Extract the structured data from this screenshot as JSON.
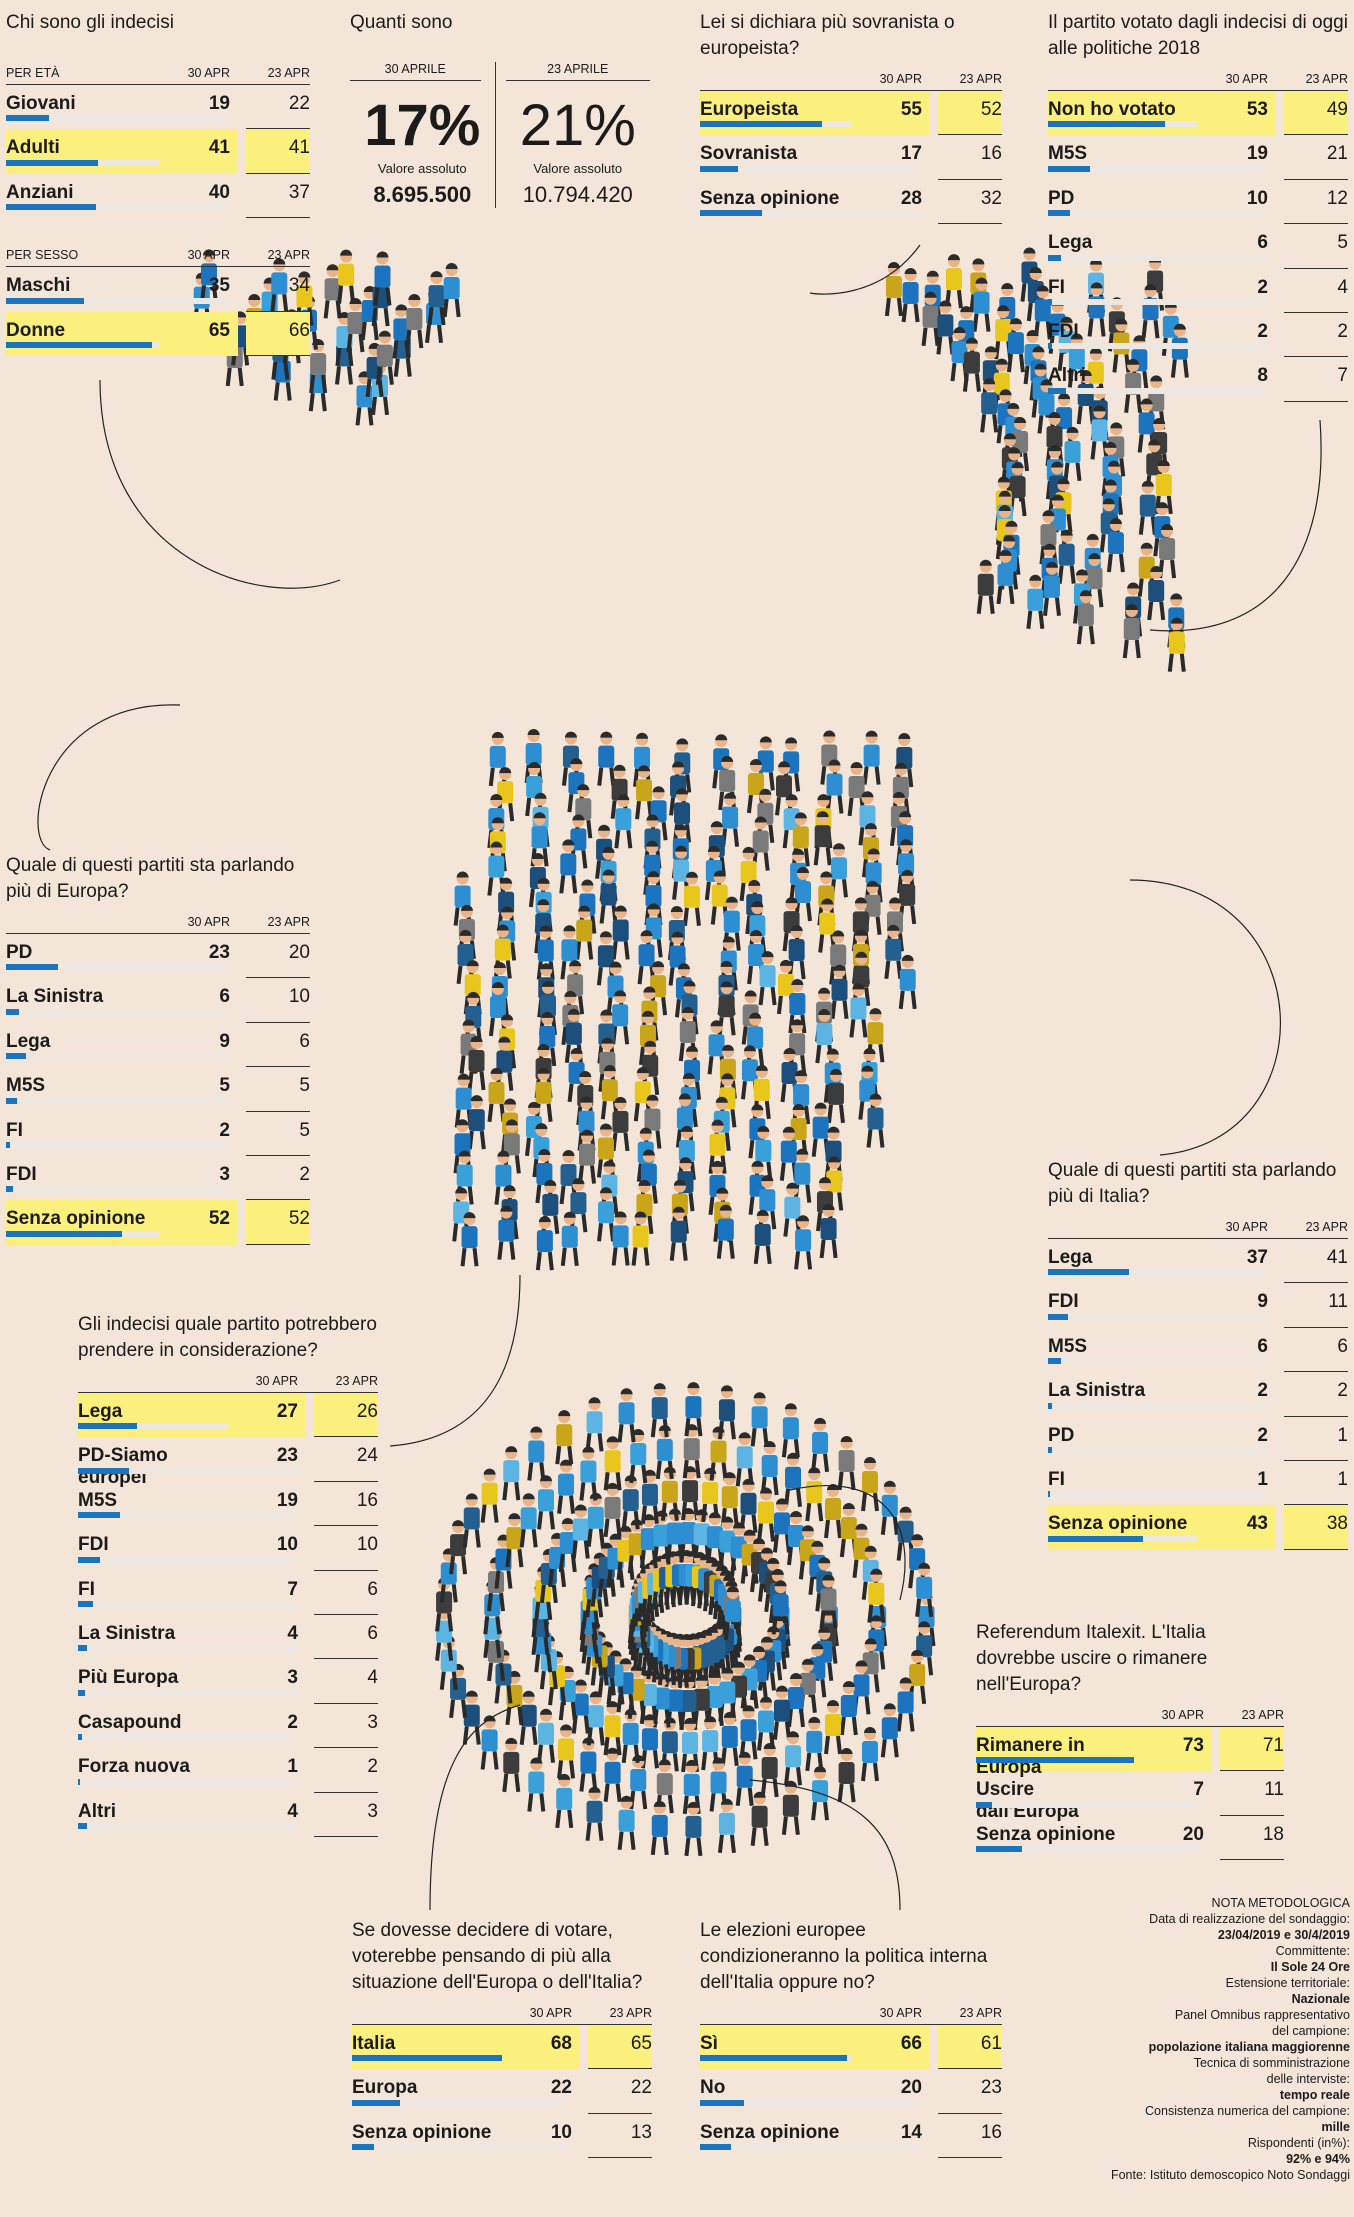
{
  "colors": {
    "background": "#f3e6d8",
    "highlight": "#fbef7e",
    "bar": "#1b74bd",
    "track": "#ede7e1"
  },
  "chart_data": [
    {
      "id": "chi_sono",
      "type": "table",
      "title": "Chi sono gli indecisi",
      "groups": [
        {
          "label": "PER ETÀ",
          "col_a": "30 APR",
          "col_b": "23 APR",
          "rows": [
            {
              "label": "Giovani",
              "a": 19,
              "b": 22,
              "hl": false
            },
            {
              "label": "Adulti",
              "a": 41,
              "b": 41,
              "hl": true
            },
            {
              "label": "Anziani",
              "a": 40,
              "b": 37,
              "hl": false
            }
          ]
        },
        {
          "label": "PER SESSO",
          "col_a": "30 APR",
          "col_b": "23 APR",
          "rows": [
            {
              "label": "Maschi",
              "a": 35,
              "b": 34,
              "hl": false
            },
            {
              "label": "Donne",
              "a": 65,
              "b": 66,
              "hl": true
            }
          ]
        }
      ]
    },
    {
      "id": "quanti_sono",
      "type": "table",
      "title": "Quanti sono",
      "columns": [
        {
          "date": "30 APRILE",
          "pct": "17%",
          "sub": "Valore assoluto",
          "abs": "8.695.500"
        },
        {
          "date": "23 APRILE",
          "pct": "21%",
          "sub": "Valore assoluto",
          "abs": "10.794.420"
        }
      ]
    },
    {
      "id": "sovranista",
      "type": "table",
      "title": "Lei si dichiara più sovranista o europeista?",
      "col_a": "30 APR",
      "col_b": "23 APR",
      "rows": [
        {
          "label": "Europeista",
          "a": 55,
          "b": 52,
          "hl": true
        },
        {
          "label": "Sovranista",
          "a": 17,
          "b": 16,
          "hl": false
        },
        {
          "label": "Senza opinione",
          "a": 28,
          "b": 32,
          "hl": false
        }
      ]
    },
    {
      "id": "partito_2018",
      "type": "table",
      "title": "Il partito votato dagli indecisi di oggi alle politiche 2018",
      "col_a": "30 APR",
      "col_b": "23 APR",
      "rows": [
        {
          "label": "Non ho votato",
          "a": 53,
          "b": 49,
          "hl": true
        },
        {
          "label": "M5S",
          "a": 19,
          "b": 21,
          "hl": false
        },
        {
          "label": "PD",
          "a": 10,
          "b": 12,
          "hl": false
        },
        {
          "label": "Lega",
          "a": 6,
          "b": 5,
          "hl": false
        },
        {
          "label": "FI",
          "a": 2,
          "b": 4,
          "hl": false
        },
        {
          "label": "FDI",
          "a": 2,
          "b": 2,
          "hl": false
        },
        {
          "label": "Altri",
          "a": 8,
          "b": 7,
          "hl": false
        }
      ]
    },
    {
      "id": "europa",
      "type": "table",
      "title": "Quale di questi partiti sta parlando più di Europa?",
      "col_a": "30 APR",
      "col_b": "23 APR",
      "rows": [
        {
          "label": "PD",
          "a": 23,
          "b": 20,
          "hl": false
        },
        {
          "label": "La Sinistra",
          "a": 6,
          "b": 10,
          "hl": false
        },
        {
          "label": "Lega",
          "a": 9,
          "b": 6,
          "hl": false
        },
        {
          "label": "M5S",
          "a": 5,
          "b": 5,
          "hl": false
        },
        {
          "label": "FI",
          "a": 2,
          "b": 5,
          "hl": false
        },
        {
          "label": "FDI",
          "a": 3,
          "b": 2,
          "hl": false
        },
        {
          "label": "Senza opinione",
          "a": 52,
          "b": 52,
          "hl": true
        }
      ]
    },
    {
      "id": "italia",
      "type": "table",
      "title": "Quale di questi partiti sta parlando più di Italia?",
      "col_a": "30 APR",
      "col_b": "23 APR",
      "rows": [
        {
          "label": "Lega",
          "a": 37,
          "b": 41,
          "hl": false
        },
        {
          "label": "FDI",
          "a": 9,
          "b": 11,
          "hl": false
        },
        {
          "label": "M5S",
          "a": 6,
          "b": 6,
          "hl": false
        },
        {
          "label": "La Sinistra",
          "a": 2,
          "b": 2,
          "hl": false
        },
        {
          "label": "PD",
          "a": 2,
          "b": 1,
          "hl": false
        },
        {
          "label": "FI",
          "a": 1,
          "b": 1,
          "hl": false
        },
        {
          "label": "Senza opinione",
          "a": 43,
          "b": 38,
          "hl": true
        }
      ]
    },
    {
      "id": "considerazione",
      "type": "table",
      "title": "Gli indecisi quale partito potrebbero prendere in considerazione?",
      "col_a": "30 APR",
      "col_b": "23 APR",
      "rows": [
        {
          "label": "Lega",
          "a": 27,
          "b": 26,
          "hl": true
        },
        {
          "label": "PD-Siamo europei",
          "a": 23,
          "b": 24,
          "hl": false
        },
        {
          "label": "M5S",
          "a": 19,
          "b": 16,
          "hl": false
        },
        {
          "label": "FDI",
          "a": 10,
          "b": 10,
          "hl": false
        },
        {
          "label": "FI",
          "a": 7,
          "b": 6,
          "hl": false
        },
        {
          "label": "La Sinistra",
          "a": 4,
          "b": 6,
          "hl": false
        },
        {
          "label": "Più Europa",
          "a": 3,
          "b": 4,
          "hl": false
        },
        {
          "label": "Casapound",
          "a": 2,
          "b": 3,
          "hl": false
        },
        {
          "label": "Forza nuova",
          "a": 1,
          "b": 2,
          "hl": false
        },
        {
          "label": "Altri",
          "a": 4,
          "b": 3,
          "hl": false
        }
      ]
    },
    {
      "id": "italexit",
      "type": "table",
      "title": "Referendum Italexit. L'Italia dovrebbe uscire o rimanere nell'Europa?",
      "col_a": "30 APR",
      "col_b": "23 APR",
      "rows": [
        {
          "label": "Rimanere in Europa",
          "a": 73,
          "b": 71,
          "hl": true
        },
        {
          "label": "Uscire dall'Europa",
          "a": 7,
          "b": 11,
          "hl": false
        },
        {
          "label": "Senza opinione",
          "a": 20,
          "b": 18,
          "hl": false
        }
      ]
    },
    {
      "id": "decidere",
      "type": "table",
      "title": "Se dovesse decidere di votare, voterebbe pensando di più alla situazione dell'Europa o dell'Italia?",
      "col_a": "30 APR",
      "col_b": "23 APR",
      "rows": [
        {
          "label": "Italia",
          "a": 68,
          "b": 65,
          "hl": true
        },
        {
          "label": "Europa",
          "a": 22,
          "b": 22,
          "hl": false
        },
        {
          "label": "Senza opinione",
          "a": 10,
          "b": 13,
          "hl": false
        }
      ]
    },
    {
      "id": "condizioneranno",
      "type": "table",
      "title": "Le elezioni europee condizioneranno la politica interna dell'Italia oppure no?",
      "col_a": "30 APR",
      "col_b": "23 APR",
      "rows": [
        {
          "label": "Sì",
          "a": 66,
          "b": 61,
          "hl": true
        },
        {
          "label": "No",
          "a": 20,
          "b": 23,
          "hl": false
        },
        {
          "label": "Senza opinione",
          "a": 14,
          "b": 16,
          "hl": false
        }
      ]
    }
  ],
  "note": {
    "title": "NOTA METODOLOGICA",
    "lines": [
      {
        "text": "Data di realizzazione del sondaggio:",
        "bold": false
      },
      {
        "text": "23/04/2019 e 30/4/2019",
        "bold": true
      },
      {
        "text": "Committente:",
        "bold": false
      },
      {
        "text": "Il Sole 24 Ore",
        "bold": true
      },
      {
        "text": "Estensione territoriale:",
        "bold": false
      },
      {
        "text": "Nazionale",
        "bold": true
      },
      {
        "text": "Panel Omnibus rappresentativo",
        "bold": false
      },
      {
        "text": "del campione:",
        "bold": false
      },
      {
        "text": "popolazione italiana maggiorenne",
        "bold": true
      },
      {
        "text": "Tecnica di somministrazione",
        "bold": false
      },
      {
        "text": "delle interviste:",
        "bold": false
      },
      {
        "text": "tempo reale",
        "bold": true
      },
      {
        "text": "Consistenza numerica del campione:",
        "bold": false
      },
      {
        "text": "mille",
        "bold": true
      },
      {
        "text": "Rispondenti (in%):",
        "bold": false
      },
      {
        "text": "92% e 94%",
        "bold": true
      },
      {
        "text": "Fonte: Istituto demoscopico Noto Sondaggi",
        "bold": false
      }
    ]
  }
}
